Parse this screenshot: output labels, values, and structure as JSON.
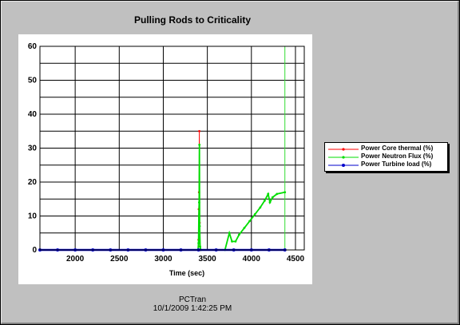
{
  "window": {
    "title": "Pulling Rods to Criticality",
    "footer_app": "PCTran",
    "footer_timestamp": "10/1/2009 1:42:25 PM"
  },
  "chart_data": {
    "type": "line",
    "title": "Pulling Rods to Criticality",
    "xlabel": "Time (sec)",
    "ylabel": "",
    "xlim": [
      1600,
      4600
    ],
    "ylim": [
      0,
      60
    ],
    "x_ticks": [
      2000,
      2500,
      3000,
      3500,
      4000,
      4500
    ],
    "y_ticks": [
      0,
      10,
      20,
      30,
      40,
      50,
      60
    ],
    "grid": true,
    "legend_position": "right",
    "cursor_x": 4380,
    "series": [
      {
        "name": "Power Core thermal (%)",
        "color": "#ff0000",
        "marker": "dot",
        "points": [
          [
            1600,
            0
          ],
          [
            3395,
            0
          ],
          [
            3400,
            3
          ],
          [
            3403,
            12
          ],
          [
            3406,
            17
          ],
          [
            3409,
            35
          ],
          [
            3412,
            8
          ],
          [
            3416,
            1
          ],
          [
            3420,
            0
          ],
          [
            4380,
            0
          ]
        ]
      },
      {
        "name": "Power Neutron Flux (%)",
        "color": "#00dd00",
        "marker": "dot",
        "points": [
          [
            1600,
            0
          ],
          [
            3395,
            0
          ],
          [
            3400,
            2
          ],
          [
            3404,
            10
          ],
          [
            3407,
            14
          ],
          [
            3410,
            31
          ],
          [
            3413,
            7
          ],
          [
            3418,
            1
          ],
          [
            3425,
            0
          ],
          [
            3700,
            0
          ],
          [
            3750,
            5
          ],
          [
            3780,
            2.5
          ],
          [
            3820,
            2.5
          ],
          [
            3860,
            4.5
          ],
          [
            3920,
            6.5
          ],
          [
            3980,
            8.5
          ],
          [
            4040,
            10.5
          ],
          [
            4100,
            12.5
          ],
          [
            4150,
            14.5
          ],
          [
            4190,
            16.5
          ],
          [
            4210,
            14
          ],
          [
            4240,
            15.5
          ],
          [
            4290,
            16.5
          ],
          [
            4380,
            17
          ]
        ]
      },
      {
        "name": "Power Turbine load (%)",
        "color": "#0000cc",
        "marker": "dot",
        "points": [
          [
            1600,
            0
          ],
          [
            1800,
            0
          ],
          [
            2000,
            0
          ],
          [
            2200,
            0
          ],
          [
            2400,
            0
          ],
          [
            2600,
            0
          ],
          [
            2800,
            0
          ],
          [
            3000,
            0
          ],
          [
            3200,
            0
          ],
          [
            3400,
            0
          ],
          [
            3600,
            0
          ],
          [
            3800,
            0
          ],
          [
            4000,
            0
          ],
          [
            4200,
            0
          ],
          [
            4380,
            0
          ]
        ]
      }
    ]
  }
}
